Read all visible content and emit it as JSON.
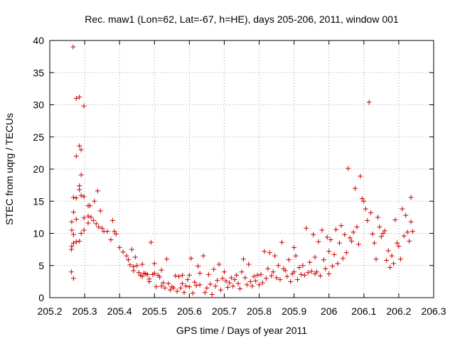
{
  "chart_data": {
    "type": "scatter",
    "title": "Rec. maw1 (Lon=62, Lat=-67, h=HE), days 205-206, 2011, window 001",
    "xlabel": "GPS time / Days of year 2011",
    "ylabel": "STEC from uqrg / TECUs",
    "xlim": [
      205.2,
      206.3
    ],
    "ylim": [
      0,
      40
    ],
    "xticks": [
      205.2,
      205.3,
      205.4,
      205.5,
      205.6,
      205.7,
      205.8,
      205.9,
      206,
      206.1,
      206.2,
      206.3
    ],
    "xtick_labels": [
      "205.2",
      "205.3",
      "205.4",
      "205.5",
      "205.6",
      "205.7",
      "205.8",
      "205.9",
      "206",
      "206.1",
      "206.2",
      "206.3"
    ],
    "yticks": [
      0,
      5,
      10,
      15,
      20,
      25,
      30,
      35,
      40
    ],
    "ytick_labels": [
      "0",
      "5",
      "10",
      "15",
      "20",
      "25",
      "30",
      "35",
      "40"
    ],
    "grid": true,
    "marker": "+",
    "color": "#cc0000",
    "series": [
      {
        "name": "STEC",
        "points": [
          [
            205.262,
            4.0
          ],
          [
            205.262,
            7.5
          ],
          [
            205.263,
            8.0
          ],
          [
            205.263,
            10.5
          ],
          [
            205.263,
            11.8
          ],
          [
            205.267,
            39.0
          ],
          [
            205.268,
            15.6
          ],
          [
            205.268,
            13.3
          ],
          [
            205.268,
            9.8
          ],
          [
            205.268,
            8.5
          ],
          [
            205.268,
            3.0
          ],
          [
            205.276,
            22.0
          ],
          [
            205.276,
            31.0
          ],
          [
            205.276,
            15.5
          ],
          [
            205.276,
            12.2
          ],
          [
            205.276,
            8.7
          ],
          [
            205.285,
            31.2
          ],
          [
            205.285,
            23.6
          ],
          [
            205.285,
            17.4
          ],
          [
            205.285,
            16.8
          ],
          [
            205.285,
            8.8
          ],
          [
            205.29,
            23.0
          ],
          [
            205.29,
            19.1
          ],
          [
            205.29,
            15.9
          ],
          [
            205.29,
            10.0
          ],
          [
            205.298,
            29.8
          ],
          [
            205.298,
            15.7
          ],
          [
            205.298,
            12.4
          ],
          [
            205.298,
            10.5
          ],
          [
            205.31,
            14.3
          ],
          [
            205.31,
            12.7
          ],
          [
            205.31,
            11.6
          ],
          [
            205.315,
            14.3
          ],
          [
            205.318,
            12.5
          ],
          [
            205.325,
            12.0
          ],
          [
            205.328,
            15.0
          ],
          [
            205.333,
            11.5
          ],
          [
            205.337,
            16.6
          ],
          [
            205.34,
            11.0
          ],
          [
            205.345,
            13.5
          ],
          [
            205.35,
            10.8
          ],
          [
            205.355,
            10.3
          ],
          [
            205.365,
            10.3
          ],
          [
            205.375,
            9.0
          ],
          [
            205.38,
            12.0
          ],
          [
            205.385,
            10.3
          ],
          [
            205.39,
            9.9
          ],
          [
            205.4,
            7.8
          ],
          [
            205.41,
            7.1
          ],
          [
            205.42,
            6.5
          ],
          [
            205.425,
            5.9
          ],
          [
            205.43,
            5.1
          ],
          [
            205.435,
            7.5
          ],
          [
            205.44,
            4.8
          ],
          [
            205.44,
            4.2
          ],
          [
            205.445,
            6.3
          ],
          [
            205.45,
            5.0
          ],
          [
            205.455,
            3.9
          ],
          [
            205.46,
            3.5
          ],
          [
            205.465,
            5.2
          ],
          [
            205.465,
            3.3
          ],
          [
            205.47,
            3.8
          ],
          [
            205.475,
            3.7
          ],
          [
            205.48,
            3.6
          ],
          [
            205.485,
            2.9
          ],
          [
            205.485,
            2.5
          ],
          [
            205.49,
            8.6
          ],
          [
            205.495,
            3.6
          ],
          [
            205.5,
            5.3
          ],
          [
            205.5,
            3.8
          ],
          [
            205.505,
            1.7
          ],
          [
            205.51,
            3.5
          ],
          [
            205.515,
            3.2
          ],
          [
            205.52,
            1.8
          ],
          [
            205.52,
            4.3
          ],
          [
            205.525,
            2.3
          ],
          [
            205.53,
            1.5
          ],
          [
            205.535,
            6.0
          ],
          [
            205.54,
            2.2
          ],
          [
            205.545,
            1.2
          ],
          [
            205.55,
            1.7
          ],
          [
            205.555,
            1.5
          ],
          [
            205.56,
            3.4
          ],
          [
            205.565,
            1.0
          ],
          [
            205.57,
            3.3
          ],
          [
            205.575,
            1.5
          ],
          [
            205.58,
            2.2
          ],
          [
            205.58,
            3.5
          ],
          [
            205.585,
            0.8
          ],
          [
            205.59,
            1.8
          ],
          [
            205.595,
            2.8
          ],
          [
            205.6,
            3.5
          ],
          [
            205.6,
            1.7
          ],
          [
            205.605,
            6.1
          ],
          [
            205.61,
            0.7
          ],
          [
            205.615,
            2.4
          ],
          [
            205.62,
            1.9
          ],
          [
            205.625,
            4.9
          ],
          [
            205.63,
            2.0
          ],
          [
            205.63,
            3.8
          ],
          [
            205.64,
            6.5
          ],
          [
            205.645,
            0.8
          ],
          [
            205.65,
            1.5
          ],
          [
            205.655,
            3.6
          ],
          [
            205.66,
            2.1
          ],
          [
            205.665,
            0.5
          ],
          [
            205.67,
            4.4
          ],
          [
            205.675,
            1.8
          ],
          [
            205.68,
            2.7
          ],
          [
            205.685,
            5.2
          ],
          [
            205.69,
            1.2
          ],
          [
            205.695,
            3.0
          ],
          [
            205.7,
            4.0
          ],
          [
            205.705,
            2.6
          ],
          [
            205.71,
            1.6
          ],
          [
            205.715,
            2.3
          ],
          [
            205.72,
            3.1
          ],
          [
            205.725,
            1.8
          ],
          [
            205.73,
            2.8
          ],
          [
            205.735,
            3.5
          ],
          [
            205.74,
            2.2
          ],
          [
            205.745,
            1.4
          ],
          [
            205.75,
            4.0
          ],
          [
            205.755,
            6.0
          ],
          [
            205.76,
            3.1
          ],
          [
            205.765,
            2.0
          ],
          [
            205.77,
            5.2
          ],
          [
            205.775,
            2.5
          ],
          [
            205.78,
            1.8
          ],
          [
            205.785,
            3.3
          ],
          [
            205.79,
            2.6
          ],
          [
            205.795,
            3.5
          ],
          [
            205.8,
            2.0
          ],
          [
            205.805,
            3.6
          ],
          [
            205.81,
            2.3
          ],
          [
            205.815,
            7.2
          ],
          [
            205.82,
            3.0
          ],
          [
            205.825,
            4.5
          ],
          [
            205.83,
            7.0
          ],
          [
            205.835,
            3.4
          ],
          [
            205.84,
            4.0
          ],
          [
            205.845,
            6.5
          ],
          [
            205.85,
            3.1
          ],
          [
            205.855,
            5.0
          ],
          [
            205.86,
            2.8
          ],
          [
            205.865,
            8.6
          ],
          [
            205.87,
            4.5
          ],
          [
            205.875,
            4.2
          ],
          [
            205.88,
            3.3
          ],
          [
            205.885,
            5.9
          ],
          [
            205.89,
            2.5
          ],
          [
            205.895,
            3.7
          ],
          [
            205.9,
            4.0
          ],
          [
            205.9,
            7.8
          ],
          [
            205.905,
            6.5
          ],
          [
            205.91,
            2.8
          ],
          [
            205.915,
            4.7
          ],
          [
            205.92,
            3.6
          ],
          [
            205.925,
            5.0
          ],
          [
            205.93,
            3.5
          ],
          [
            205.935,
            10.8
          ],
          [
            205.94,
            3.9
          ],
          [
            205.945,
            5.5
          ],
          [
            205.95,
            4.1
          ],
          [
            205.955,
            9.8
          ],
          [
            205.96,
            3.7
          ],
          [
            205.96,
            6.3
          ],
          [
            205.965,
            4.0
          ],
          [
            205.97,
            8.7
          ],
          [
            205.975,
            3.4
          ],
          [
            205.98,
            10.5
          ],
          [
            205.985,
            5.9
          ],
          [
            205.99,
            4.5
          ],
          [
            205.995,
            9.4
          ],
          [
            206.0,
            3.7
          ],
          [
            206.0,
            7.2
          ],
          [
            206.005,
            9.0
          ],
          [
            206.01,
            4.9
          ],
          [
            206.015,
            6.7
          ],
          [
            206.02,
            10.6
          ],
          [
            206.025,
            5.3
          ],
          [
            206.03,
            8.5
          ],
          [
            206.035,
            11.2
          ],
          [
            206.04,
            6.1
          ],
          [
            206.045,
            9.8
          ],
          [
            206.05,
            7.0
          ],
          [
            206.055,
            20.1
          ],
          [
            206.06,
            9.3
          ],
          [
            206.065,
            8.8
          ],
          [
            206.07,
            10.2
          ],
          [
            206.075,
            17.0
          ],
          [
            206.08,
            11.0
          ],
          [
            206.085,
            8.3
          ],
          [
            206.09,
            18.9
          ],
          [
            206.095,
            15.4
          ],
          [
            206.1,
            15.0
          ],
          [
            206.105,
            13.8
          ],
          [
            206.11,
            12.0
          ],
          [
            206.115,
            30.4
          ],
          [
            206.12,
            13.2
          ],
          [
            206.125,
            9.9
          ],
          [
            206.13,
            8.5
          ],
          [
            206.135,
            6.0
          ],
          [
            206.14,
            12.5
          ],
          [
            206.145,
            11.0
          ],
          [
            206.15,
            9.5
          ],
          [
            206.155,
            10.0
          ],
          [
            206.16,
            10.4
          ],
          [
            206.165,
            5.8
          ],
          [
            206.17,
            7.3
          ],
          [
            206.175,
            4.7
          ],
          [
            206.18,
            6.5
          ],
          [
            206.185,
            5.3
          ],
          [
            206.19,
            12.1
          ],
          [
            206.195,
            8.5
          ],
          [
            206.2,
            8.0
          ],
          [
            206.205,
            6.0
          ],
          [
            206.21,
            13.8
          ],
          [
            206.215,
            9.6
          ],
          [
            206.22,
            12.8
          ],
          [
            206.225,
            10.2
          ],
          [
            206.23,
            8.8
          ],
          [
            206.235,
            15.6
          ],
          [
            206.235,
            11.8
          ],
          [
            206.24,
            10.3
          ]
        ]
      }
    ]
  }
}
